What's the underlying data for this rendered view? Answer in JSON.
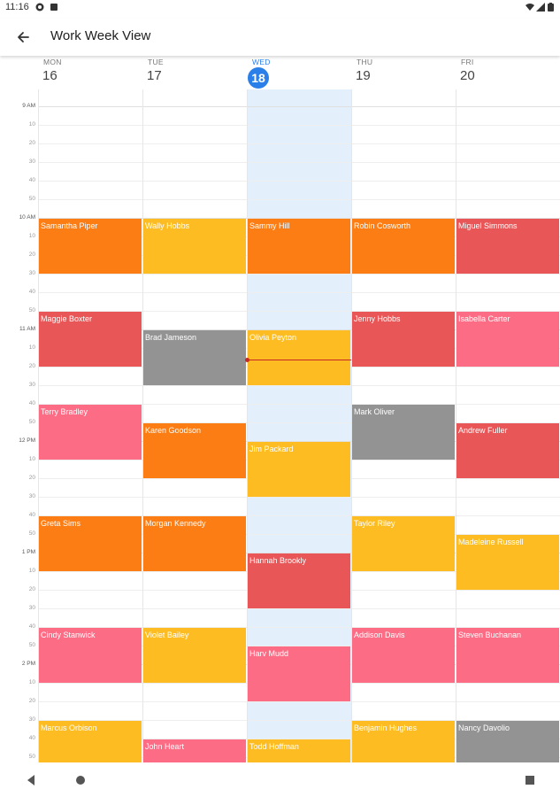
{
  "status": {
    "time": "11:16"
  },
  "appbar": {
    "title": "Work Week View"
  },
  "days": [
    {
      "name": "MON",
      "num": "16",
      "today": false
    },
    {
      "name": "TUE",
      "num": "17",
      "today": false
    },
    {
      "name": "WED",
      "num": "18",
      "today": true
    },
    {
      "name": "THU",
      "num": "19",
      "today": false
    },
    {
      "name": "FRI",
      "num": "20",
      "today": false
    }
  ],
  "time_labels": [
    "9 AM",
    "10",
    "20",
    "30",
    "40",
    "50",
    "10 AM",
    "10",
    "20",
    "30",
    "40",
    "50",
    "11 AM",
    "10",
    "20",
    "30",
    "40",
    "50",
    "12 PM",
    "10",
    "20",
    "30",
    "40",
    "50",
    "1 PM",
    "10",
    "20",
    "30",
    "40",
    "50",
    "2 PM",
    "10",
    "20",
    "30",
    "40",
    "50"
  ],
  "colors": {
    "orange": "#fb7d14",
    "yellow": "#fdbd22",
    "red": "#e95657",
    "pink": "#fd6c85",
    "gray": "#939393",
    "today_column": "#e3f0fc",
    "today_badge": "#2a7fe8",
    "now_line": "#c62828"
  },
  "events": [
    {
      "day": 0,
      "title": "Samantha Piper",
      "start": "10:00",
      "end": "10:30",
      "color": "orange"
    },
    {
      "day": 1,
      "title": "Wally Hobbs",
      "start": "10:00",
      "end": "10:30",
      "color": "yellow"
    },
    {
      "day": 2,
      "title": "Sammy Hill",
      "start": "10:00",
      "end": "10:30",
      "color": "orange"
    },
    {
      "day": 3,
      "title": "Robin Cosworth",
      "start": "10:00",
      "end": "10:30",
      "color": "orange"
    },
    {
      "day": 4,
      "title": "Miguel Simmons",
      "start": "10:00",
      "end": "10:30",
      "color": "red"
    },
    {
      "day": 0,
      "title": "Maggie Boxter",
      "start": "10:50",
      "end": "11:20",
      "color": "red"
    },
    {
      "day": 1,
      "title": "Brad Jameson",
      "start": "11:00",
      "end": "11:30",
      "color": "gray"
    },
    {
      "day": 2,
      "title": "Olivia Peyton",
      "start": "11:00",
      "end": "11:30",
      "color": "yellow"
    },
    {
      "day": 3,
      "title": "Jenny Hobbs",
      "start": "10:50",
      "end": "11:20",
      "color": "red"
    },
    {
      "day": 4,
      "title": "Isabella Carter",
      "start": "10:50",
      "end": "11:20",
      "color": "pink"
    },
    {
      "day": 0,
      "title": "Terry Bradley",
      "start": "11:40",
      "end": "12:10",
      "color": "pink"
    },
    {
      "day": 1,
      "title": "Karen Goodson",
      "start": "11:50",
      "end": "12:20",
      "color": "orange"
    },
    {
      "day": 2,
      "title": "Jim Packard",
      "start": "12:00",
      "end": "12:30",
      "color": "yellow"
    },
    {
      "day": 3,
      "title": "Mark Oliver",
      "start": "11:40",
      "end": "12:10",
      "color": "gray"
    },
    {
      "day": 4,
      "title": "Andrew Fuller",
      "start": "11:50",
      "end": "12:20",
      "color": "red"
    },
    {
      "day": 0,
      "title": "Greta Sims",
      "start": "12:40",
      "end": "13:10",
      "color": "orange"
    },
    {
      "day": 1,
      "title": "Morgan Kennedy",
      "start": "12:40",
      "end": "13:10",
      "color": "orange"
    },
    {
      "day": 2,
      "title": "Hannah Brookly",
      "start": "13:00",
      "end": "13:30",
      "color": "red"
    },
    {
      "day": 3,
      "title": "Taylor Riley",
      "start": "12:40",
      "end": "13:10",
      "color": "yellow"
    },
    {
      "day": 4,
      "title": "Madeleine Russell",
      "start": "12:50",
      "end": "13:20",
      "color": "yellow"
    },
    {
      "day": 0,
      "title": "Cindy Stanwick",
      "start": "13:40",
      "end": "14:10",
      "color": "pink"
    },
    {
      "day": 1,
      "title": "Violet Bailey",
      "start": "13:40",
      "end": "14:10",
      "color": "yellow"
    },
    {
      "day": 2,
      "title": "Harv Mudd",
      "start": "13:50",
      "end": "14:20",
      "color": "pink"
    },
    {
      "day": 3,
      "title": "Addison Davis",
      "start": "13:40",
      "end": "14:10",
      "color": "pink"
    },
    {
      "day": 4,
      "title": "Steven Buchanan",
      "start": "13:40",
      "end": "14:10",
      "color": "pink"
    },
    {
      "day": 0,
      "title": "Marcus Orbison",
      "start": "14:30",
      "end": "15:00",
      "color": "yellow"
    },
    {
      "day": 1,
      "title": "John Heart",
      "start": "14:40",
      "end": "15:10",
      "color": "pink"
    },
    {
      "day": 2,
      "title": "Todd Hoffman",
      "start": "14:40",
      "end": "15:10",
      "color": "yellow"
    },
    {
      "day": 3,
      "title": "Benjamin Hughes",
      "start": "14:30",
      "end": "15:00",
      "color": "yellow"
    },
    {
      "day": 4,
      "title": "Nancy Davolio",
      "start": "14:30",
      "end": "15:00",
      "color": "gray"
    }
  ],
  "current_time": "11:16",
  "icons": [
    "arrow-back-icon",
    "nav-back-icon",
    "nav-home-icon",
    "nav-recents-icon",
    "wifi-icon",
    "signal-icon",
    "battery-icon"
  ]
}
